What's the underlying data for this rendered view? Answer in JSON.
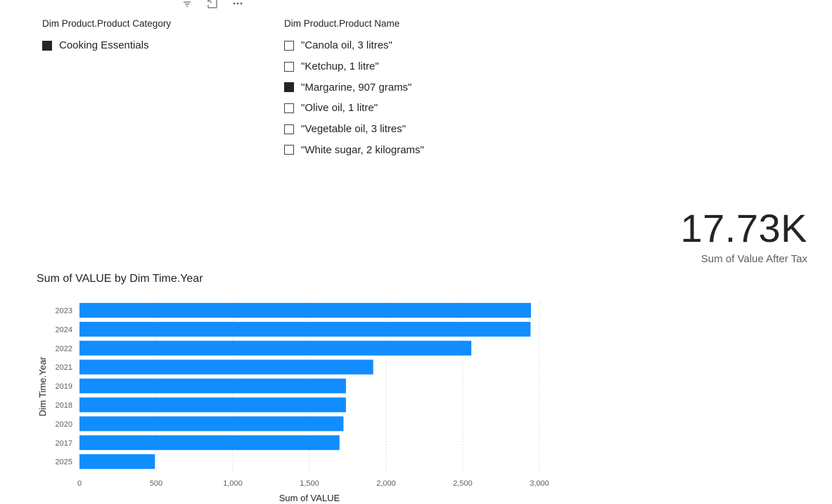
{
  "header_icons": [
    "filter-icon",
    "focus-mode-icon",
    "more-options-icon"
  ],
  "category_slicer": {
    "title": "Dim Product.Product Category",
    "items": [
      {
        "label": "Cooking Essentials",
        "checked": true
      }
    ]
  },
  "product_slicer": {
    "title": "Dim Product.Product Name",
    "items": [
      {
        "label": "\"Canola oil, 3 litres\"",
        "checked": false
      },
      {
        "label": "\"Ketchup, 1 litre\"",
        "checked": false
      },
      {
        "label": "\"Margarine, 907 grams\"",
        "checked": true
      },
      {
        "label": "\"Olive oil, 1 litre\"",
        "checked": false
      },
      {
        "label": "\"Vegetable oil, 3 litres\"",
        "checked": false
      },
      {
        "label": "\"White sugar, 2 kilograms\"",
        "checked": false
      }
    ]
  },
  "card": {
    "value": "17.73K",
    "label": "Sum of Value After Tax"
  },
  "chart_data": {
    "type": "bar",
    "orientation": "horizontal",
    "title": "Sum of VALUE by Dim Time.Year",
    "xlabel": "Sum of VALUE",
    "ylabel": "Dim Time.Year",
    "categories": [
      "2023",
      "2024",
      "2022",
      "2021",
      "2019",
      "2018",
      "2020",
      "2017",
      "2025"
    ],
    "values": [
      2945,
      2942,
      2556,
      1916,
      1738,
      1738,
      1722,
      1696,
      492
    ],
    "xlim": [
      0,
      3000
    ],
    "xticks": [
      0,
      500,
      1000,
      1500,
      2000,
      2500,
      3000
    ],
    "xtick_labels": [
      "0",
      "500",
      "1,000",
      "1,500",
      "2,000",
      "2,500",
      "3,000"
    ],
    "grid": "vertical dotted",
    "bar_color": "#118DFF"
  }
}
